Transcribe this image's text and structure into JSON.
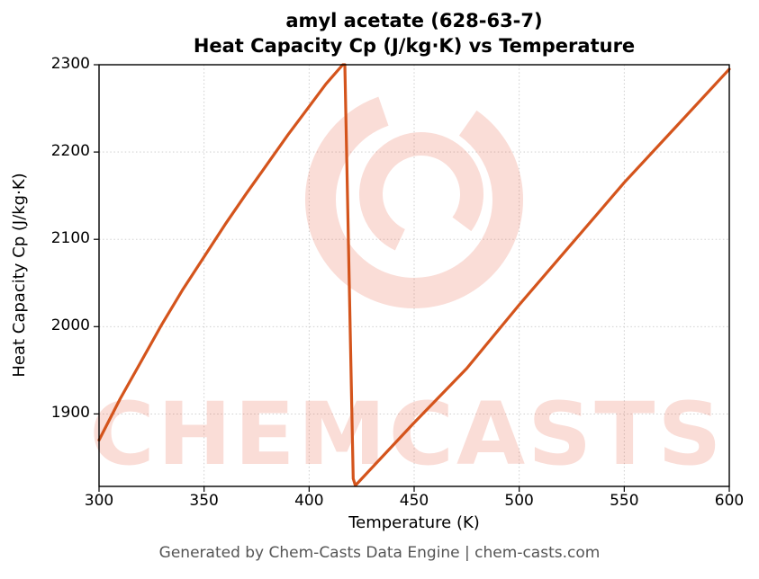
{
  "title": {
    "line1": "amyl acetate (628-63-7)",
    "line2": "Heat Capacity Cp (J/kg·K) vs Temperature"
  },
  "footer": "Generated by Chem-Casts Data Engine | chem-casts.com",
  "watermark": {
    "text": "CHEMCASTS",
    "color": "#e4553a",
    "opacity": 0.2
  },
  "chart_data": {
    "type": "line",
    "title": "amyl acetate (628-63-7)  Heat Capacity Cp (J/kg·K) vs Temperature",
    "xlabel": "Temperature (K)",
    "ylabel": "Heat Capacity Cp (J/kg·K)",
    "xlim": [
      300,
      600
    ],
    "ylim": [
      1817,
      2300
    ],
    "xticks": [
      300,
      350,
      400,
      450,
      500,
      550,
      600
    ],
    "yticks": [
      1900,
      2000,
      2100,
      2200,
      2300
    ],
    "grid": true,
    "legend": false,
    "line_color": "#d4541c",
    "series": [
      {
        "name": "Heat Capacity Cp",
        "points": [
          [
            300,
            1870
          ],
          [
            310,
            1917
          ],
          [
            320,
            1960
          ],
          [
            330,
            2003
          ],
          [
            340,
            2043
          ],
          [
            350,
            2080
          ],
          [
            360,
            2117
          ],
          [
            370,
            2152
          ],
          [
            380,
            2186
          ],
          [
            390,
            2220
          ],
          [
            400,
            2252
          ],
          [
            408,
            2278
          ],
          [
            416,
            2300
          ],
          [
            417,
            2300
          ],
          [
            421,
            1826
          ],
          [
            422,
            1818
          ],
          [
            450,
            1890
          ],
          [
            475,
            1952
          ],
          [
            500,
            2025
          ],
          [
            525,
            2095
          ],
          [
            550,
            2165
          ],
          [
            575,
            2230
          ],
          [
            600,
            2295
          ]
        ]
      }
    ]
  }
}
